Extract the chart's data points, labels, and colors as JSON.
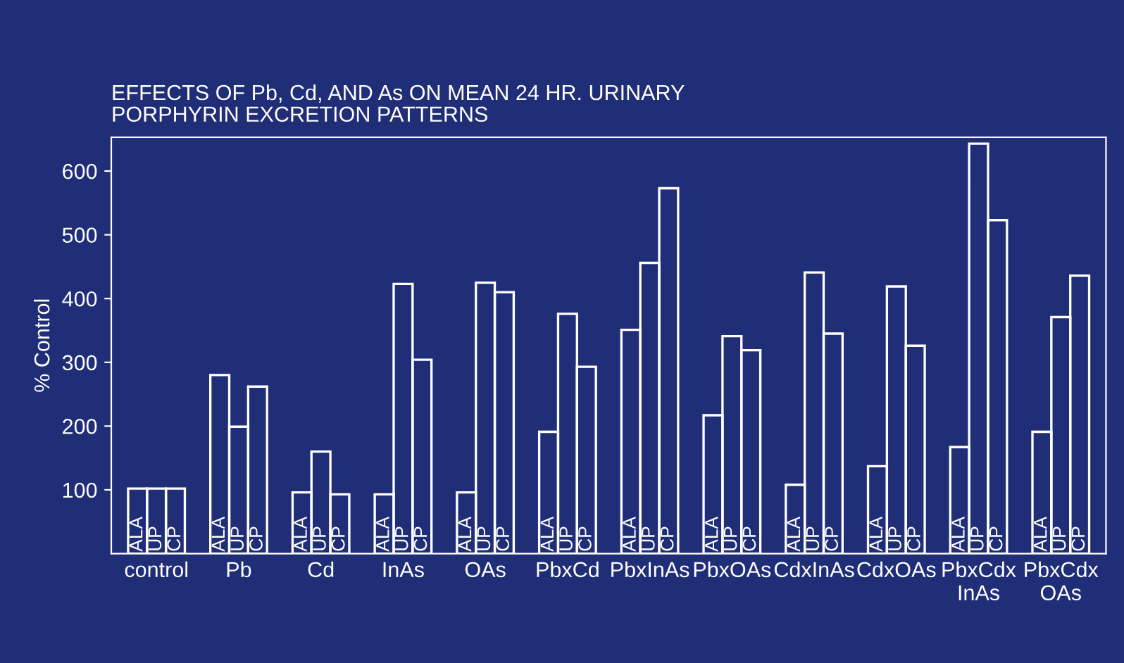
{
  "chart_data": {
    "type": "bar",
    "title": "EFFECTS OF Pb, Cd, AND As ON MEAN 24 HR. URINARY\nPORPHYRIN EXCRETION PATTERNS",
    "ylabel": "% Control",
    "categories": [
      "control",
      "Pb",
      "Cd",
      "InAs",
      "OAs",
      "PbxCd",
      "PbxInAs",
      "PbxOAs",
      "CdxInAs",
      "CdxOAs",
      "PbxCdx\nInAs",
      "PbxCdx\nOAs"
    ],
    "series": [
      {
        "name": "ALA",
        "color": "#ffffff",
        "values": [
          102,
          280,
          96,
          93,
          96,
          191,
          351,
          217,
          108,
          137,
          167,
          191
        ]
      },
      {
        "name": "UP",
        "color": "#ffffff",
        "values": [
          102,
          199,
          160,
          423,
          425,
          376,
          456,
          341,
          441,
          419,
          643,
          371
        ]
      },
      {
        "name": "CP",
        "color": "#ffffff",
        "values": [
          102,
          262,
          93,
          304,
          410,
          293,
          573,
          319,
          345,
          326,
          523,
          436
        ]
      }
    ],
    "ylim": [
      0,
      653
    ],
    "yticks": [
      100,
      200,
      300,
      400,
      500,
      600
    ],
    "grid": false,
    "legend": false
  }
}
